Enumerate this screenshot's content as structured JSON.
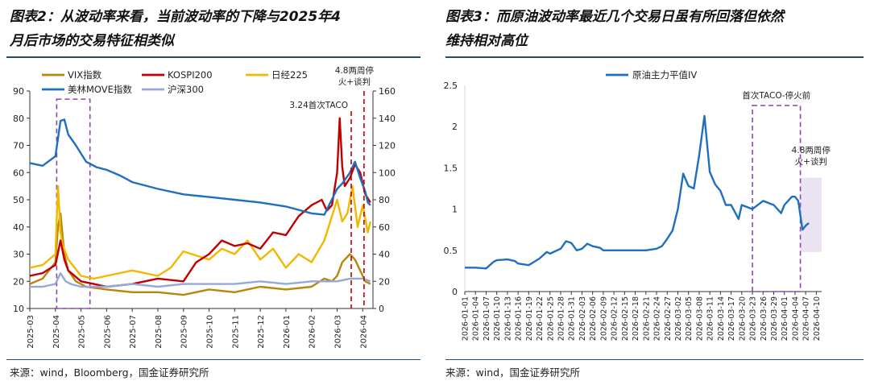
{
  "left": {
    "title_line1": "图表2：从波动率来看，当前波动率的下降与2025年4",
    "title_line2": "月后市场的交易特征相类似",
    "source": "来源：wind，Bloomberg，国金证券研究所"
  },
  "right": {
    "title_line1": "图表3：而原油波动率最近几个交易日虽有所回落但依然",
    "title_line2": "维持相对高位",
    "source": "来源：wind，国金证券研究所"
  },
  "chart_data": [
    {
      "type": "line",
      "title": "从波动率来看，当前波动率的下降与2025年4月后市场的交易特征相类似",
      "x_ticks": [
        "2025-03",
        "2025-04",
        "2025-05",
        "2025-06",
        "2025-07",
        "2025-08",
        "2025-09",
        "2025-10",
        "2025-11",
        "2025-12",
        "2026-01",
        "2026-02",
        "2026-03",
        "2026-04"
      ],
      "x_range": [
        0,
        13.4
      ],
      "left_axis": {
        "range": [
          10,
          90
        ],
        "ticks": [
          "10",
          "20",
          "30",
          "40",
          "50",
          "60",
          "70",
          "80",
          "90"
        ]
      },
      "right_axis": {
        "range": [
          0,
          160
        ],
        "ticks": [
          "0",
          "20",
          "40",
          "60",
          "80",
          "100",
          "120",
          "140",
          "160"
        ]
      },
      "legend_position": "top",
      "series": [
        {
          "name": "VIX指数",
          "color": "#b8860b",
          "axis": "left",
          "x": [
            0,
            0.5,
            1,
            1.1,
            1.2,
            1.35,
            1.5,
            1.8,
            2.2,
            3,
            4,
            5,
            6,
            7,
            8,
            9,
            10,
            11,
            11.5,
            11.8,
            12.0,
            12.2,
            12.5,
            12.7,
            12.9,
            13.1,
            13.3
          ],
          "values": [
            19,
            21,
            27,
            40,
            45,
            30,
            24,
            20,
            18,
            17,
            16,
            16,
            15,
            17,
            16,
            18,
            17,
            18,
            21,
            20,
            22,
            27,
            30,
            28,
            24,
            20,
            19
          ]
        },
        {
          "name": "KOSPI200",
          "color": "#c00000",
          "axis": "left",
          "x": [
            0,
            0.5,
            1,
            1.2,
            1.35,
            1.5,
            2,
            2.5,
            3,
            4,
            5,
            6,
            6.5,
            7,
            7.5,
            8,
            8.5,
            9,
            9.5,
            10,
            10.5,
            11,
            11.4,
            11.6,
            11.8,
            12.0,
            12.1,
            12.2,
            12.3,
            12.5,
            12.7,
            12.9,
            13.1,
            13.3
          ],
          "values": [
            22,
            23,
            26,
            35,
            28,
            24,
            20,
            19,
            18,
            19,
            21,
            20,
            27,
            30,
            35,
            33,
            34,
            32,
            38,
            37,
            44,
            48,
            50,
            46,
            48,
            60,
            80,
            62,
            55,
            58,
            63,
            60,
            52,
            49
          ]
        },
        {
          "name": "日经225",
          "color": "#f2b800",
          "axis": "left",
          "x": [
            0,
            0.5,
            1,
            1.1,
            1.2,
            1.3,
            1.5,
            2,
            2.5,
            3,
            4,
            5,
            5.5,
            6,
            7,
            7.5,
            8,
            8.5,
            9,
            9.5,
            10,
            10.5,
            11,
            11.5,
            12,
            12.2,
            12.4,
            12.6,
            12.8,
            13,
            13.2,
            13.3
          ],
          "values": [
            25,
            26,
            30,
            55,
            38,
            33,
            28,
            22,
            21,
            22,
            24,
            22,
            25,
            31,
            28,
            32,
            30,
            35,
            28,
            32,
            25,
            30,
            27,
            35,
            50,
            42,
            45,
            55,
            40,
            48,
            38,
            42
          ]
        },
        {
          "name": "美林MOVE指数",
          "color": "#1f6fc1",
          "axis": "right",
          "x": [
            0,
            0.5,
            1,
            1.2,
            1.35,
            1.5,
            1.8,
            2.2,
            2.6,
            3,
            3.5,
            4,
            5,
            6,
            7,
            8,
            9,
            10,
            11,
            11.5,
            12,
            12.2,
            12.5,
            12.7,
            12.9,
            13.1,
            13.2,
            13.3
          ],
          "values": [
            107,
            105,
            112,
            138,
            139,
            128,
            120,
            108,
            104,
            102,
            98,
            93,
            88,
            84,
            82,
            80,
            78,
            75,
            70,
            69,
            88,
            92,
            100,
            108,
            96,
            86,
            78,
            76
          ]
        },
        {
          "name": "沪深300",
          "color": "#94a9d6",
          "axis": "left",
          "x": [
            0,
            0.5,
            1,
            1.2,
            1.4,
            1.6,
            2,
            3,
            4,
            5,
            6,
            7,
            8,
            9,
            10,
            11,
            12,
            12.5,
            13,
            13.3
          ],
          "values": [
            18,
            18,
            19,
            23,
            20,
            19,
            18,
            18,
            19,
            18,
            19,
            19,
            19,
            20,
            19,
            20,
            20,
            21,
            21,
            20
          ]
        }
      ],
      "annotations": [
        {
          "label": "3.24首次TACO",
          "x": 12.55,
          "style": "vertical-dashed-line"
        },
        {
          "label_line1": "4.8两周停",
          "label_line2": "火+谈判",
          "x": 13.05,
          "style": "vertical-dashed-line"
        },
        {
          "label": "",
          "x_range": [
            1.05,
            2.35
          ],
          "y_range": [
            10,
            87
          ],
          "style": "dashed-box"
        }
      ]
    },
    {
      "type": "line",
      "title": "而原油波动率最近几个交易日虽有所回落但依然维持相对高位",
      "ylim": [
        0,
        2.5
      ],
      "y_ticks": [
        "0",
        "0.5",
        "1",
        "1.5",
        "2",
        "2.5"
      ],
      "x_ticks": [
        "2026-01-01",
        "2026-01-04",
        "2026-01-07",
        "2026-01-10",
        "2026-01-13",
        "2026-01-16",
        "2026-01-19",
        "2026-01-22",
        "2026-01-25",
        "2026-01-28",
        "2026-01-31",
        "2026-02-03",
        "2026-02-06",
        "2026-02-09",
        "2026-02-12",
        "2026-02-15",
        "2026-02-18",
        "2026-02-21",
        "2026-02-24",
        "2026-02-27",
        "2026-03-02",
        "2026-03-05",
        "2026-03-08",
        "2026-03-11",
        "2026-03-14",
        "2026-03-17",
        "2026-03-20",
        "2026-03-23",
        "2026-03-26",
        "2026-03-29",
        "2026-04-01",
        "2026-04-04",
        "2026-04-07",
        "2026-04-10"
      ],
      "legend_position": "top-center",
      "series": [
        {
          "name": "原油主力平值IV",
          "color": "#1f6fc1",
          "x": [
            0,
            1,
            2,
            2.7,
            3,
            4,
            4.7,
            5,
            6,
            6.5,
            7,
            7.7,
            8,
            9,
            9.5,
            10,
            10.5,
            11,
            11.5,
            12,
            12.7,
            13,
            14,
            15,
            16,
            17,
            18,
            18.5,
            19,
            19.5,
            20,
            20.5,
            21,
            21.5,
            22,
            22.5,
            23,
            23.5,
            24,
            24.5,
            25,
            25.7,
            26,
            27,
            28,
            29,
            29.7,
            30,
            30.7,
            31,
            31.3,
            31.7,
            32,
            32.3
          ],
          "values": [
            0.29,
            0.29,
            0.28,
            0.36,
            0.38,
            0.39,
            0.37,
            0.34,
            0.32,
            0.36,
            0.4,
            0.48,
            0.46,
            0.52,
            0.61,
            0.59,
            0.5,
            0.52,
            0.58,
            0.55,
            0.53,
            0.5,
            0.5,
            0.5,
            0.5,
            0.5,
            0.52,
            0.55,
            0.64,
            0.74,
            1.0,
            1.43,
            1.28,
            1.25,
            1.65,
            2.13,
            1.45,
            1.3,
            1.22,
            1.05,
            1.05,
            0.88,
            1.05,
            1.0,
            1.1,
            1.05,
            0.95,
            1.05,
            1.15,
            1.15,
            1.1,
            0.75,
            0.8,
            0.83
          ]
        }
      ],
      "annotations": [
        {
          "label": "首次TACO-停火前",
          "x_range": [
            27,
            31.5
          ],
          "style": "dashed-box"
        },
        {
          "label_line1": "4.8两周停",
          "label_line2": "火+谈判",
          "x_range": [
            31.5,
            33.5
          ],
          "y_range": [
            0.48,
            1.38
          ],
          "style": "shaded-box"
        }
      ]
    }
  ]
}
